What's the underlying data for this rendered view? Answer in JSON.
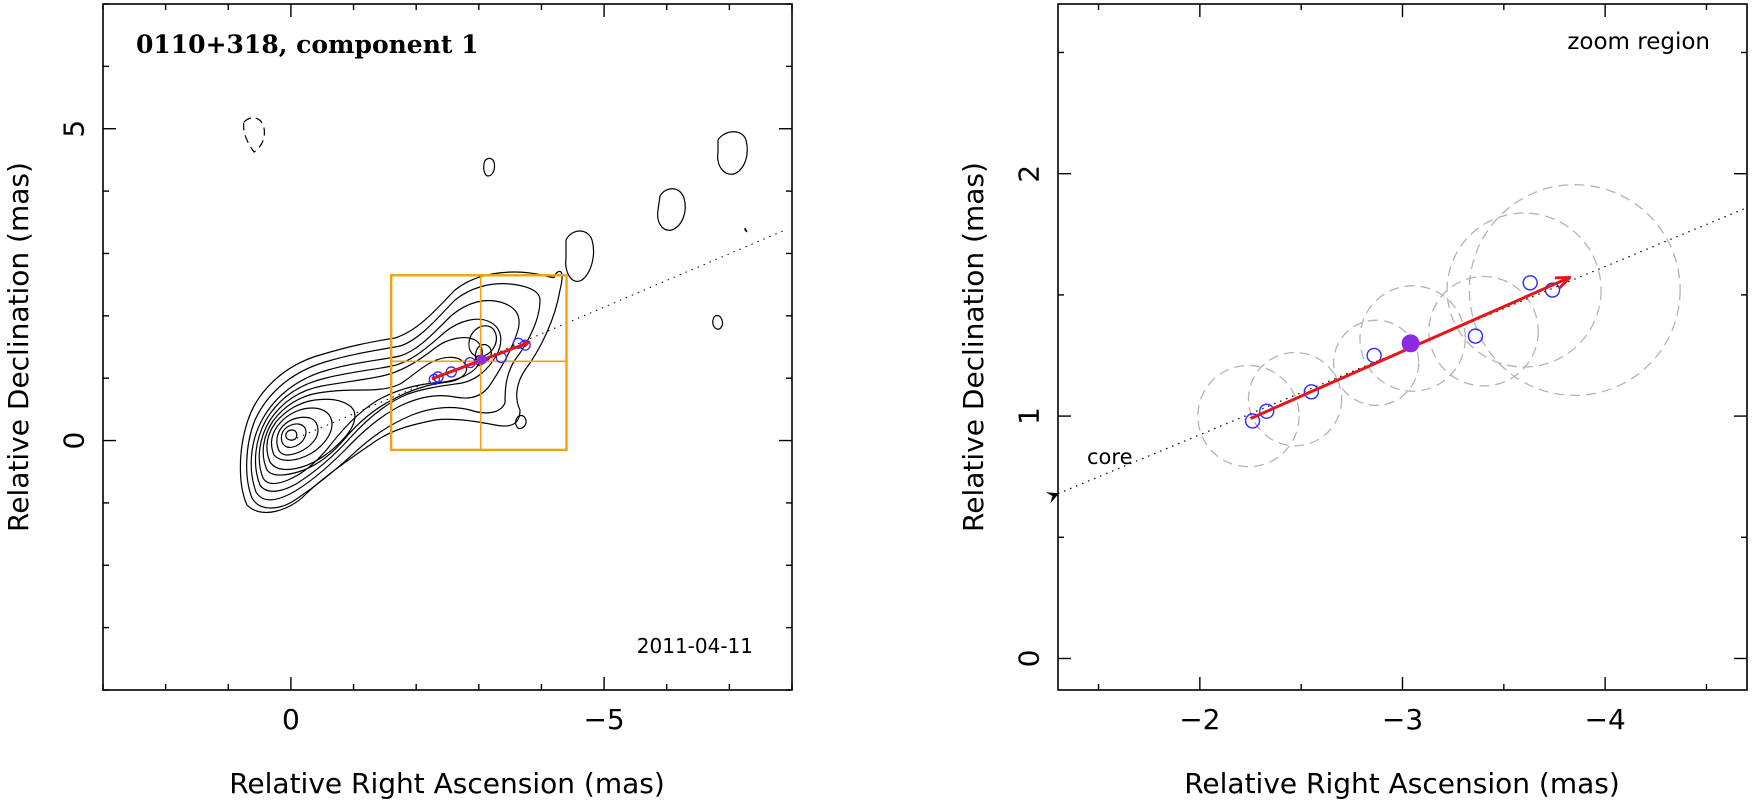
{
  "chart_data": [
    {
      "type": "contour",
      "title": "0110+318, component 1",
      "epoch": "2011-04-11",
      "xlabel": "Relative Right Ascension (mas)",
      "ylabel": "Relative Declination (mas)",
      "xlim": [
        3.0,
        -8.0
      ],
      "ylim": [
        -4.0,
        7.0
      ],
      "xticks": [
        {
          "value": 0,
          "label": "0"
        },
        {
          "value": -5,
          "label": "−5"
        }
      ],
      "yticks": [
        {
          "value": 0,
          "label": "0"
        },
        {
          "value": 5,
          "label": "5"
        }
      ],
      "core": {
        "x": 0,
        "y": 0
      },
      "contour_levels": 11,
      "jet_axis": {
        "from": [
          0,
          0
        ],
        "to": [
          -7.9,
          3.38
        ]
      },
      "components": [
        {
          "x": -2.29,
          "y": 0.98
        },
        {
          "x": -2.35,
          "y": 1.02
        },
        {
          "x": -2.56,
          "y": 1.1
        },
        {
          "x": -2.86,
          "y": 1.25
        },
        {
          "x": -3.36,
          "y": 1.33
        },
        {
          "x": -3.63,
          "y": 1.56
        },
        {
          "x": -3.74,
          "y": 1.53
        }
      ],
      "current_component": {
        "x": -3.05,
        "y": 1.3
      },
      "motion_vector": {
        "from": [
          -2.25,
          0.99
        ],
        "to": [
          -3.82,
          1.58
        ]
      },
      "zoom_box": {
        "x": [
          -1.6,
          -4.4
        ],
        "y": [
          -0.15,
          2.65
        ],
        "divide": [
          -3.03,
          1.27
        ]
      },
      "colors": {
        "vector": "#e8141a",
        "component": "#2a2aff",
        "current": "#8a2be2",
        "box": "#f2a20c"
      }
    },
    {
      "type": "scatter",
      "title": "zoom region",
      "xlabel": "Relative Right Ascension (mas)",
      "ylabel": "Relative Declination (mas)",
      "xlim": [
        -1.3,
        -4.7
      ],
      "ylim": [
        -0.13,
        2.7
      ],
      "xticks": [
        {
          "value": -2,
          "label": "−2"
        },
        {
          "value": -3,
          "label": "−3"
        },
        {
          "value": -4,
          "label": "−4"
        }
      ],
      "yticks": [
        {
          "value": 0,
          "label": "0"
        },
        {
          "value": 1,
          "label": "1"
        },
        {
          "value": 2,
          "label": "2"
        }
      ],
      "core_label": "core",
      "jet_axis": {
        "from": [
          -1.3,
          0.68
        ],
        "to": [
          -4.7,
          1.86
        ]
      },
      "components": [
        {
          "x": -2.26,
          "y": 0.98
        },
        {
          "x": -2.33,
          "y": 1.02
        },
        {
          "x": -2.55,
          "y": 1.1
        },
        {
          "x": -2.86,
          "y": 1.25
        },
        {
          "x": -3.36,
          "y": 1.33
        },
        {
          "x": -3.63,
          "y": 1.55
        },
        {
          "x": -3.74,
          "y": 1.52
        }
      ],
      "current_component": {
        "x": -3.04,
        "y": 1.3
      },
      "fit_circles": [
        {
          "x": -2.24,
          "y": 1.0,
          "r": 0.25
        },
        {
          "x": -2.47,
          "y": 1.07,
          "r": 0.23
        },
        {
          "x": -2.87,
          "y": 1.22,
          "r": 0.21
        },
        {
          "x": -3.05,
          "y": 1.32,
          "r": 0.26
        },
        {
          "x": -3.4,
          "y": 1.35,
          "r": 0.27
        },
        {
          "x": -3.6,
          "y": 1.52,
          "r": 0.38
        },
        {
          "x": -3.85,
          "y": 1.52,
          "r": 0.52
        }
      ],
      "motion_vector": {
        "from": [
          -2.25,
          0.99
        ],
        "to": [
          -3.82,
          1.57
        ]
      },
      "colors": {
        "vector": "#e8141a",
        "component": "#2a2aff",
        "current": "#8a2be2",
        "circle": "#b4b4b4"
      }
    }
  ]
}
